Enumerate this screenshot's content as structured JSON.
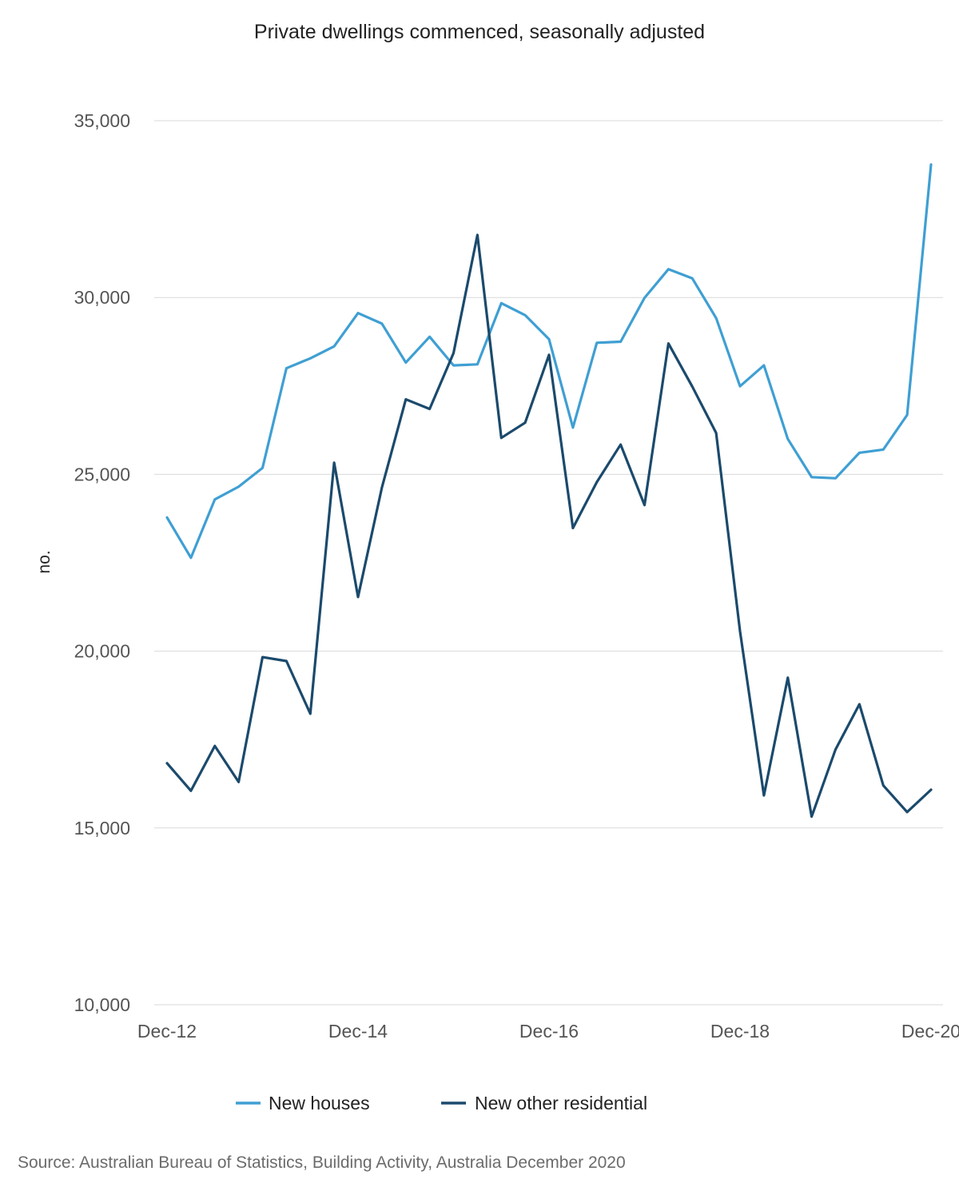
{
  "chart_data": {
    "type": "line",
    "title": "Private dwellings commenced, seasonally adjusted",
    "ylabel": "no.",
    "xlabel": "",
    "ylim": [
      10000,
      35000
    ],
    "yticks": [
      10000,
      15000,
      20000,
      25000,
      30000,
      35000
    ],
    "ytick_labels": [
      "10,000",
      "15,000",
      "20,000",
      "25,000",
      "30,000",
      "35,000"
    ],
    "x": [
      "Dec-12",
      "Mar-13",
      "Jun-13",
      "Sep-13",
      "Dec-13",
      "Mar-14",
      "Jun-14",
      "Sep-14",
      "Dec-14",
      "Mar-15",
      "Jun-15",
      "Sep-15",
      "Dec-15",
      "Mar-16",
      "Jun-16",
      "Sep-16",
      "Dec-16",
      "Mar-17",
      "Jun-17",
      "Sep-17",
      "Dec-17",
      "Mar-18",
      "Jun-18",
      "Sep-18",
      "Dec-18",
      "Mar-19",
      "Jun-19",
      "Sep-19",
      "Dec-19",
      "Mar-20",
      "Jun-20",
      "Sep-20",
      "Dec-20"
    ],
    "xtick_labels": [
      "Dec-12",
      "Dec-14",
      "Dec-16",
      "Dec-18",
      "Dec-20"
    ],
    "grid": true,
    "legend_position": "bottom",
    "series": [
      {
        "name": "New houses",
        "color": "#3f9fd3",
        "values": [
          23780,
          22640,
          24290,
          24650,
          25180,
          28000,
          28280,
          28620,
          29560,
          29260,
          28160,
          28890,
          28080,
          28110,
          29840,
          29500,
          28820,
          26320,
          28720,
          28750,
          29990,
          30800,
          30540,
          29420,
          27490,
          28080,
          26000,
          24920,
          24890,
          25610,
          25700,
          26680,
          33760
        ]
      },
      {
        "name": "New other residential",
        "color": "#1b4a6c",
        "values": [
          16830,
          16050,
          17320,
          16300,
          19830,
          19720,
          18230,
          25330,
          21530,
          24630,
          27120,
          26850,
          28430,
          31770,
          26030,
          26460,
          28380,
          23480,
          24780,
          25840,
          24130,
          28700,
          27480,
          26170,
          20560,
          15920,
          19250,
          15320,
          17220,
          18500,
          16200,
          15450,
          16080
        ]
      }
    ]
  },
  "footer": {
    "source": "Source: Australian Bureau of Statistics, Building Activity, Australia December 2020"
  }
}
